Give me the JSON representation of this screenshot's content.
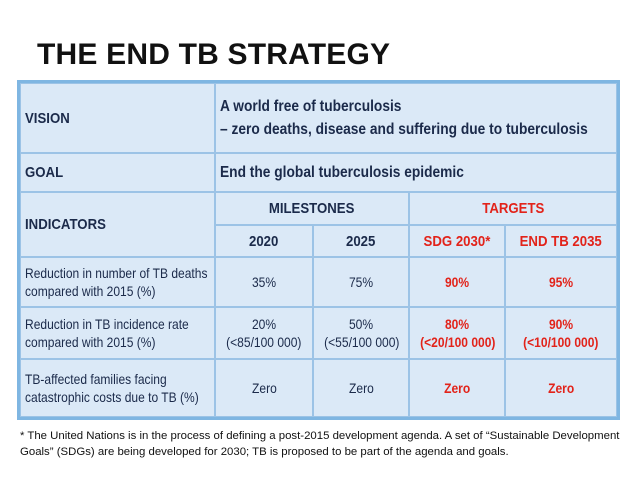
{
  "title": "THE END TB STRATEGY",
  "table": {
    "vision": {
      "label": "VISION",
      "line1": "A world free of tuberculosis",
      "line2": "– zero deaths, disease and suffering due to tuberculosis"
    },
    "goal": {
      "label": "GOAL",
      "text": "End the global tuberculosis epidemic"
    },
    "indicators_label": "INDICATORS",
    "milestones_label": "MILESTONES",
    "targets_label": "TARGETS",
    "years": [
      "2020",
      "2025",
      "SDG 2030*",
      "END TB 2035"
    ],
    "rows": [
      {
        "indicator_line1": "Reduction in number of TB deaths",
        "indicator_line2": "compared with 2015 (%)",
        "values": [
          {
            "main": "35%",
            "sub": ""
          },
          {
            "main": "75%",
            "sub": ""
          },
          {
            "main": "90%",
            "sub": ""
          },
          {
            "main": "95%",
            "sub": ""
          }
        ]
      },
      {
        "indicator_line1": "Reduction in TB incidence rate",
        "indicator_line2": "compared with 2015 (%)",
        "values": [
          {
            "main": "20%",
            "sub": "(<85/100 000)"
          },
          {
            "main": "50%",
            "sub": "(<55/100 000)"
          },
          {
            "main": "80%",
            "sub": "(<20/100 000)"
          },
          {
            "main": "90%",
            "sub": "(<10/100 000)"
          }
        ]
      },
      {
        "indicator_line1": "TB-affected families facing",
        "indicator_line2": "catastrophic costs due to TB (%)",
        "values": [
          {
            "main": "Zero",
            "sub": ""
          },
          {
            "main": "Zero",
            "sub": ""
          },
          {
            "main": "Zero",
            "sub": ""
          },
          {
            "main": "Zero",
            "sub": ""
          }
        ]
      }
    ]
  },
  "footnote": "* The United Nations is in the process of defining a post-2015 development agenda. A set of “Sustainable Development Goals” (SDGs) are being developed for 2030; TB is proposed to be part of the agenda and goals.",
  "colors": {
    "table_bg": "#dbe9f7",
    "border": "#7fb6e2",
    "target_red": "#e2231a",
    "text_navy": "#1b2a4a"
  }
}
